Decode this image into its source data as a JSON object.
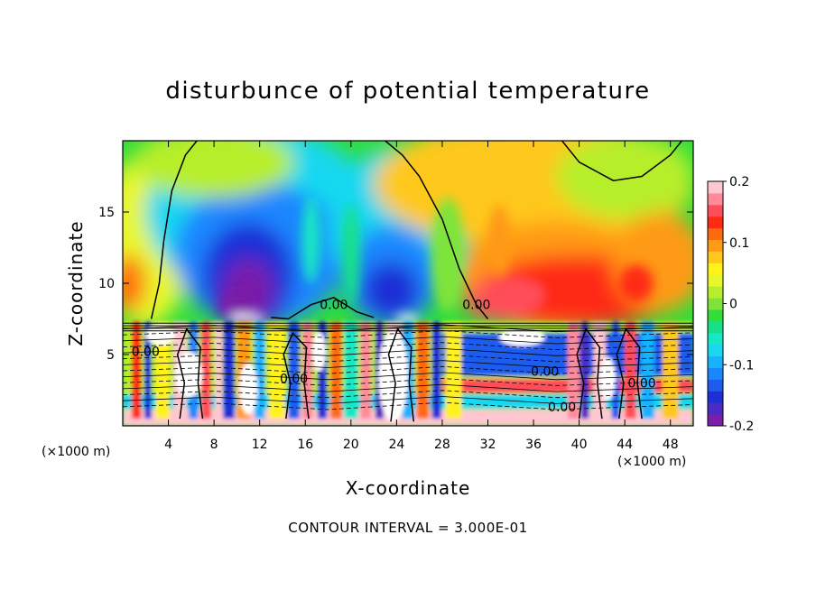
{
  "chart_data": {
    "type": "heatmap",
    "title": "disturbunce of potential temperature",
    "xlabel": "X-coordinate",
    "ylabel": "Z-coordinate",
    "x_unit_left": "(×1000 m)",
    "x_unit_right": "(×1000 m)",
    "xlim": [
      0,
      50
    ],
    "ylim": [
      0,
      20
    ],
    "x_ticks": [
      4,
      8,
      12,
      16,
      20,
      24,
      28,
      32,
      36,
      40,
      44,
      48
    ],
    "y_ticks": [
      5,
      10,
      15
    ],
    "colorbar": {
      "vmin": -0.2,
      "vmax": 0.2,
      "ticks": [
        {
          "value": 0.2,
          "label": "0.2"
        },
        {
          "value": 0.1,
          "label": "0.1"
        },
        {
          "value": 0,
          "label": "0"
        },
        {
          "value": -0.1,
          "label": "-0.1"
        },
        {
          "value": -0.2,
          "label": "-0.2"
        }
      ],
      "colors": [
        "#7a1fa8",
        "#4b2bc4",
        "#1f2fd6",
        "#1e5bef",
        "#1b86ff",
        "#19b2ff",
        "#19d8f0",
        "#16e8c4",
        "#16e08a",
        "#33dd3a",
        "#7ee43a",
        "#b7ee2b",
        "#e9f72a",
        "#fff21a",
        "#ffc81a",
        "#ff9a14",
        "#ff6a10",
        "#ff2a14",
        "#ff4d5a",
        "#ff8a9a",
        "#ffc7d0"
      ]
    },
    "contour_labels": [
      {
        "x": 18.5,
        "y": 8.2,
        "text": "0.00"
      },
      {
        "x": 31,
        "y": 8.2,
        "text": "0.00"
      },
      {
        "x": 2,
        "y": 4.9,
        "text": "0.00"
      },
      {
        "x": 15,
        "y": 3.0,
        "text": "0.00"
      },
      {
        "x": 37,
        "y": 3.5,
        "text": "0.00"
      },
      {
        "x": 38.5,
        "y": 1.0,
        "text": "0.00"
      },
      {
        "x": 45.5,
        "y": 2.7,
        "text": "0.00"
      }
    ],
    "field_regions": [
      {
        "desc": "upper background",
        "value": 0.05
      },
      {
        "desc": "upper-left cold plume",
        "x": [
          3,
          21
        ],
        "y": [
          7.5,
          19
        ],
        "value": -0.17
      },
      {
        "desc": "upper-middle cold plume",
        "x": [
          18,
          30
        ],
        "y": [
          7.5,
          17
        ],
        "value": -0.13
      },
      {
        "desc": "upper-right warm region",
        "x": [
          30,
          50
        ],
        "y": [
          7.5,
          14
        ],
        "value": 0.12
      },
      {
        "desc": "lower layer alternating bands",
        "y": [
          0,
          7.3
        ],
        "value_range": [
          -0.2,
          0.2
        ]
      }
    ],
    "contour_interval_text": "CONTOUR INTERVAL = 3.000E-01"
  }
}
